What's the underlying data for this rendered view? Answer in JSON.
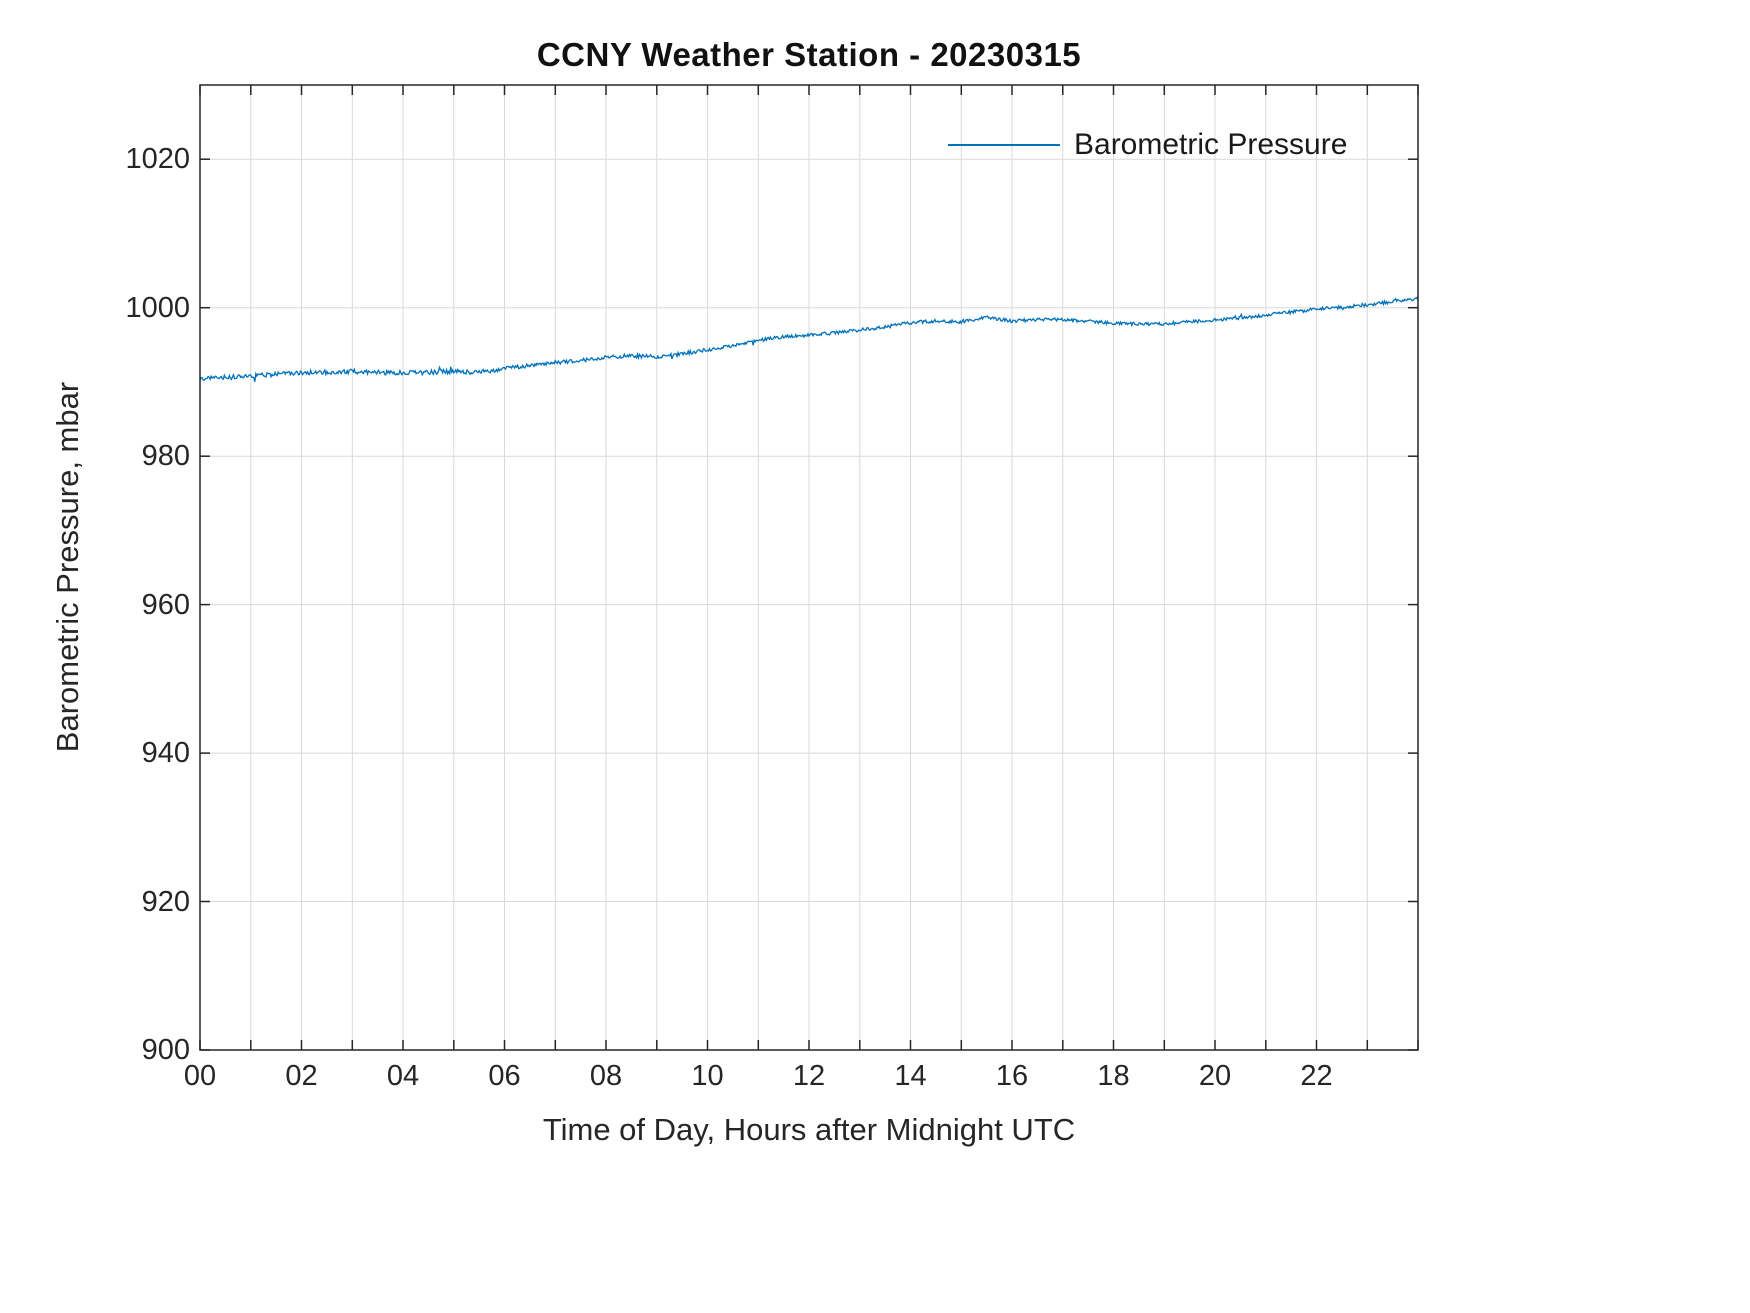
{
  "chart_data": {
    "type": "line",
    "title": "CCNY Weather Station - 20230315",
    "xlabel": "Time of Day, Hours after Midnight UTC",
    "ylabel": "Barometric Pressure, mbar",
    "xlim": [
      0,
      24
    ],
    "ylim": [
      900,
      1030
    ],
    "grid": true,
    "legend_position": "top-right-inside",
    "x_tick_values": [
      0,
      2,
      4,
      6,
      8,
      10,
      12,
      14,
      16,
      18,
      20,
      22
    ],
    "x_tick_labels": [
      "00",
      "02",
      "04",
      "06",
      "08",
      "10",
      "12",
      "14",
      "16",
      "18",
      "20",
      "22"
    ],
    "x_minor_tick_step": 1,
    "y_tick_values": [
      900,
      920,
      940,
      960,
      980,
      1000,
      1020
    ],
    "y_tick_labels": [
      "900",
      "920",
      "940",
      "960",
      "980",
      "1000",
      "1020"
    ],
    "series": [
      {
        "name": "Barometric Pressure",
        "color": "#0072BD",
        "x": [
          0,
          0.5,
          1,
          1.5,
          2,
          2.5,
          3,
          3.5,
          4,
          4.5,
          5,
          5.5,
          6,
          6.5,
          7,
          7.5,
          8,
          8.5,
          9,
          9.5,
          10,
          10.5,
          11,
          11.5,
          12,
          12.5,
          13,
          13.5,
          14,
          14.5,
          15,
          15.5,
          16,
          16.5,
          17,
          17.5,
          18,
          18.5,
          19,
          19.5,
          20,
          20.5,
          21,
          21.5,
          22,
          22.5,
          23,
          23.5,
          24
        ],
        "y": [
          990.4,
          990.6,
          990.8,
          991.0,
          991.2,
          991.3,
          991.4,
          991.3,
          991.2,
          991.3,
          991.4,
          991.3,
          991.8,
          992.2,
          992.6,
          992.9,
          993.3,
          993.5,
          993.4,
          993.8,
          994.3,
          994.9,
          995.6,
          996.1,
          996.3,
          996.6,
          997.0,
          997.4,
          998.0,
          998.2,
          998.1,
          998.7,
          998.2,
          998.4,
          998.4,
          998.2,
          997.9,
          997.8,
          997.8,
          998.1,
          998.3,
          998.6,
          999.0,
          999.4,
          999.8,
          1000.1,
          1000.4,
          1000.8,
          1001.3
        ]
      }
    ]
  }
}
